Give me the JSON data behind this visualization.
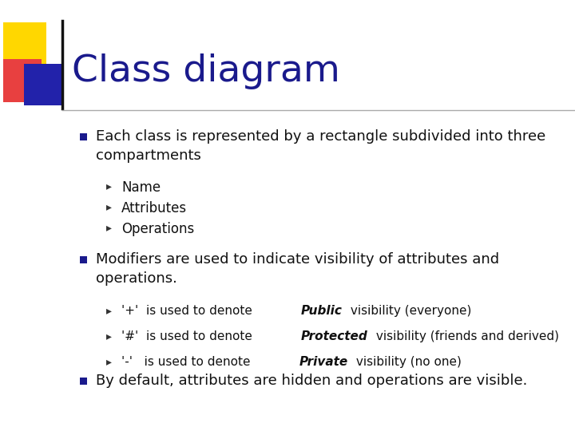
{
  "title": "Class diagram",
  "title_color": "#1A1A8C",
  "title_fontsize": 34,
  "slide_bg": "#FFFFFF",
  "bullet_color": "#1A1A8C",
  "text_color": "#111111",
  "yellow": "#FFD700",
  "red": "#E84040",
  "blue": "#2222AA",
  "line_color": "#555566",
  "sep_line_color": "#AAAAAA",
  "bullet1_text": "Each class is represented by a rectangle subdivided into three\ncompartments",
  "bullet1_subs": [
    "Name",
    "Attributes",
    "Operations"
  ],
  "bullet2_text": "Modifiers are used to indicate visibility of attributes and\noperations.",
  "bullet2_subs_pre": [
    "'+'  is used to denote ",
    "'#'  is used to denote ",
    "'-'   is used to denote "
  ],
  "bullet2_subs_italic": [
    "Public",
    "Protected",
    "Private"
  ],
  "bullet2_subs_post": [
    " visibility (everyone)",
    " visibility (friends and derived)",
    " visibility (no one)"
  ],
  "bullet3_text": "By default, attributes are hidden and operations are visible."
}
